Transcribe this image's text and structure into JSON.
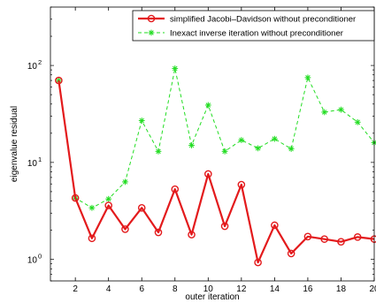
{
  "chart_data": {
    "type": "line",
    "title": "",
    "xlabel": "outer iteration",
    "ylabel": "eigenvalue residual",
    "x_scale": "linear",
    "y_scale": "log",
    "xlim": [
      0.5,
      20
    ],
    "ylim": [
      0.6,
      400
    ],
    "x_ticks": [
      2,
      4,
      6,
      8,
      10,
      12,
      14,
      16,
      18,
      20
    ],
    "x_tick_labels": [
      "2",
      "4",
      "6",
      "8",
      "10",
      "12",
      "14",
      "16",
      "18",
      "20"
    ],
    "y_ticks": [
      1,
      10,
      100
    ],
    "y_tick_labels": [
      {
        "base": "10",
        "exp": "0"
      },
      {
        "base": "10",
        "exp": "1"
      },
      {
        "base": "10",
        "exp": "2"
      }
    ],
    "grid": false,
    "legend_position": "top-right",
    "x": [
      1,
      2,
      3,
      4,
      5,
      6,
      7,
      8,
      9,
      10,
      11,
      12,
      13,
      14,
      15,
      16,
      17,
      18,
      19,
      20
    ],
    "series": [
      {
        "name": "simplified Jacobi–Davidson without preconditioner",
        "color": "#e31a1c",
        "line_style": "solid",
        "marker": "circle",
        "values": [
          70,
          4.3,
          1.65,
          3.6,
          2.05,
          3.4,
          1.9,
          5.3,
          1.8,
          7.6,
          2.2,
          5.9,
          0.93,
          2.25,
          1.15,
          1.72,
          1.62,
          1.52,
          1.7,
          1.62
        ]
      },
      {
        "name": "Inexact inverse iteration without preconditioner",
        "color": "#22dd22",
        "line_style": "dashed",
        "marker": "star",
        "values": [
          70,
          4.3,
          3.4,
          4.2,
          6.3,
          27,
          13,
          93,
          15,
          39,
          13,
          17,
          14,
          17.5,
          13.8,
          75,
          33,
          35,
          26,
          16
        ]
      }
    ]
  }
}
